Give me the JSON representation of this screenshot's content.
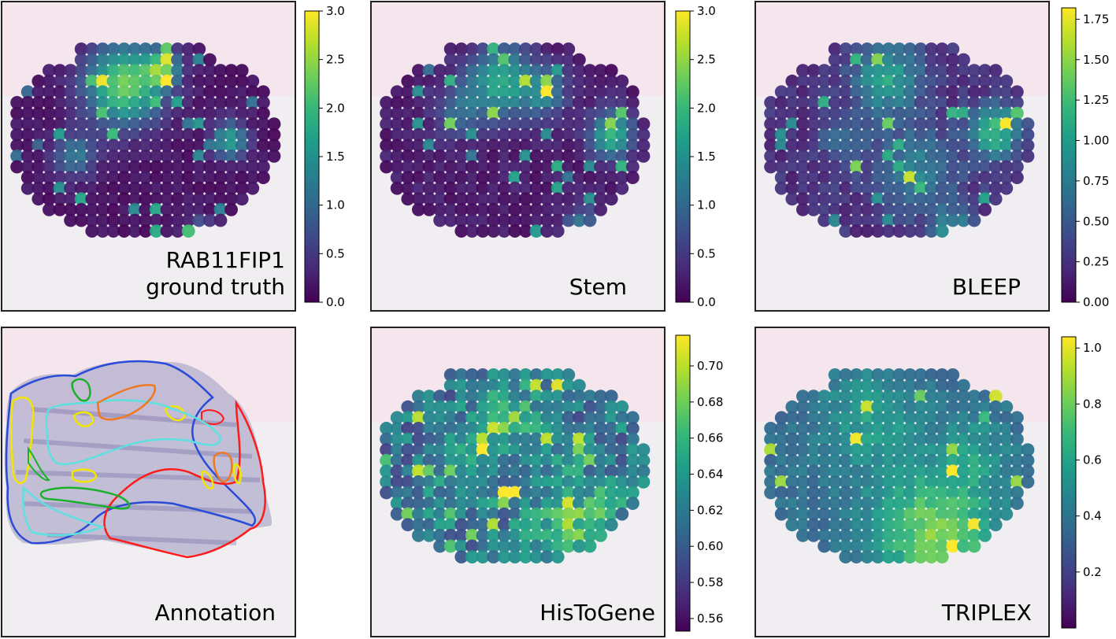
{
  "gene": "RAB11FIP1",
  "colormap": "viridis",
  "colormap_stops": [
    "#440154",
    "#482878",
    "#3e4989",
    "#31688e",
    "#26828e",
    "#1f9e89",
    "#35b779",
    "#6ece58",
    "#b5de2b",
    "#fde725"
  ],
  "annotation_colors": [
    "#2a4bd7",
    "#ff1a1a",
    "#f2e600",
    "#19b02c",
    "#5ee0e0",
    "#f07820"
  ],
  "chart_data": [
    {
      "type": "heatmap",
      "panel": "ground_truth",
      "title_lines": [
        "RAB11FIP1",
        "ground truth"
      ],
      "colorbar": {
        "range": [
          0.0,
          3.0
        ],
        "ticks": [
          "0.0",
          "0.5",
          "1.0",
          "1.5",
          "2.0",
          "2.5",
          "3.0"
        ],
        "tick_values": [
          0,
          0.5,
          1.0,
          1.5,
          2.0,
          2.5,
          3.0
        ]
      }
    },
    {
      "type": "heatmap",
      "panel": "stem",
      "title_lines": [
        "Stem"
      ],
      "colorbar": {
        "range": [
          0.0,
          3.0
        ],
        "ticks": [
          "0.0",
          "0.5",
          "1.0",
          "1.5",
          "2.0",
          "2.5",
          "3.0"
        ],
        "tick_values": [
          0,
          0.5,
          1.0,
          1.5,
          2.0,
          2.5,
          3.0
        ]
      }
    },
    {
      "type": "heatmap",
      "panel": "bleep",
      "title_lines": [
        "BLEEP"
      ],
      "colorbar": {
        "range": [
          0.0,
          1.82
        ],
        "ticks": [
          "0.00",
          "0.25",
          "0.50",
          "0.75",
          "1.00",
          "1.25",
          "1.50",
          "1.75"
        ],
        "tick_values": [
          0,
          0.25,
          0.5,
          0.75,
          1.0,
          1.25,
          1.5,
          1.75
        ]
      }
    },
    {
      "type": "other",
      "panel": "annotation",
      "title_lines": [
        "Annotation"
      ]
    },
    {
      "type": "heatmap",
      "panel": "histogene",
      "title_lines": [
        "HisToGene"
      ],
      "colorbar": {
        "range": [
          0.553,
          0.717
        ],
        "ticks": [
          "0.56",
          "0.58",
          "0.60",
          "0.62",
          "0.64",
          "0.66",
          "0.68",
          "0.70"
        ],
        "tick_values": [
          0.56,
          0.58,
          0.6,
          0.62,
          0.64,
          0.66,
          0.68,
          0.7
        ]
      }
    },
    {
      "type": "heatmap",
      "panel": "triplex",
      "title_lines": [
        "TRIPLEX"
      ],
      "colorbar": {
        "range": [
          0.0,
          1.04
        ],
        "ticks": [
          "0.2",
          "0.4",
          "0.6",
          "0.8",
          "1.0"
        ],
        "tick_values": [
          0.2,
          0.4,
          0.6,
          0.8,
          1.0
        ]
      }
    }
  ]
}
